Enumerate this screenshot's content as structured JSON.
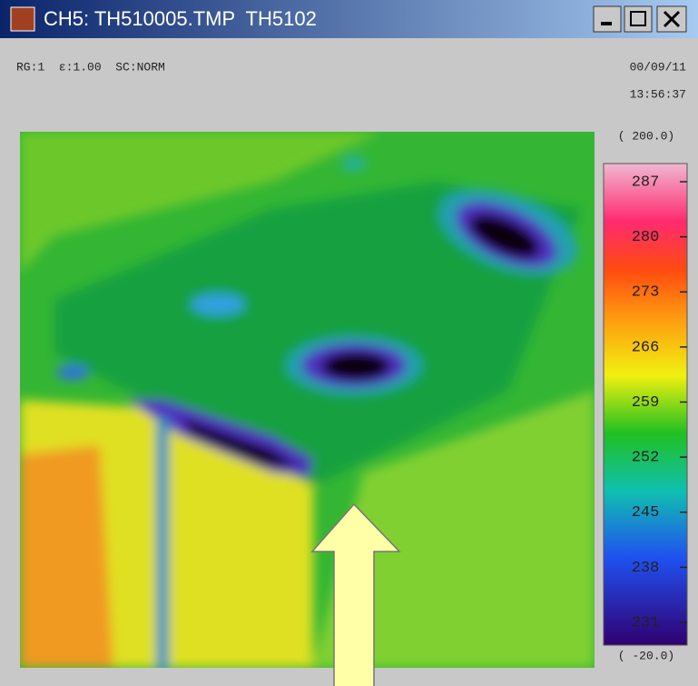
{
  "window": {
    "title": "CH5: TH510005.TMP  TH5102"
  },
  "status": {
    "settings": "RG:1  ε:1.00  SC:NORM",
    "date": "00/09/11",
    "time": "13:56:37"
  },
  "scale": {
    "max": "( 200.0)",
    "min": "( -20.0)",
    "labels": [
      "287",
      "280",
      "273",
      "266",
      "259",
      "252",
      "245",
      "238",
      "231"
    ]
  }
}
